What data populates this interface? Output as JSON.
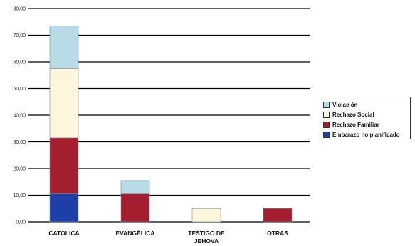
{
  "chart_data": {
    "type": "bar",
    "stacked": true,
    "categories": [
      "CATÓLICA",
      "EVANGÉLICA",
      "TESTIGO DE JEHOVA",
      "OTRAS"
    ],
    "category_labels": [
      [
        "CATÓLICA"
      ],
      [
        "EVANGÉLICA"
      ],
      [
        "TESTIGO DE",
        "JEHOVA"
      ],
      [
        "OTRAS"
      ]
    ],
    "series": [
      {
        "name": "Embarazo no planificado",
        "color": "#1f3fa8",
        "values": [
          10.5,
          0,
          0,
          0
        ]
      },
      {
        "name": "Rechazo Familiar",
        "color": "#a31f2f",
        "values": [
          21.0,
          10.5,
          0,
          5.0
        ]
      },
      {
        "name": "Rechazo Social",
        "color": "#fdf6dc",
        "values": [
          26.0,
          0,
          5.0,
          0
        ]
      },
      {
        "name": "Violación",
        "color": "#b9dbe8",
        "values": [
          16.0,
          5.0,
          0,
          0
        ]
      }
    ],
    "ylim": [
      0,
      80
    ],
    "yticks": [
      "0,00",
      "10,00",
      "20,00",
      "30,00",
      "40,00",
      "50,00",
      "60,00",
      "70,00",
      "80,00"
    ],
    "grid": true,
    "legend_position": "right",
    "legend_order": [
      "Violación",
      "Rechazo Social",
      "Rechazo Familiar",
      "Embarazo no planificado"
    ]
  }
}
